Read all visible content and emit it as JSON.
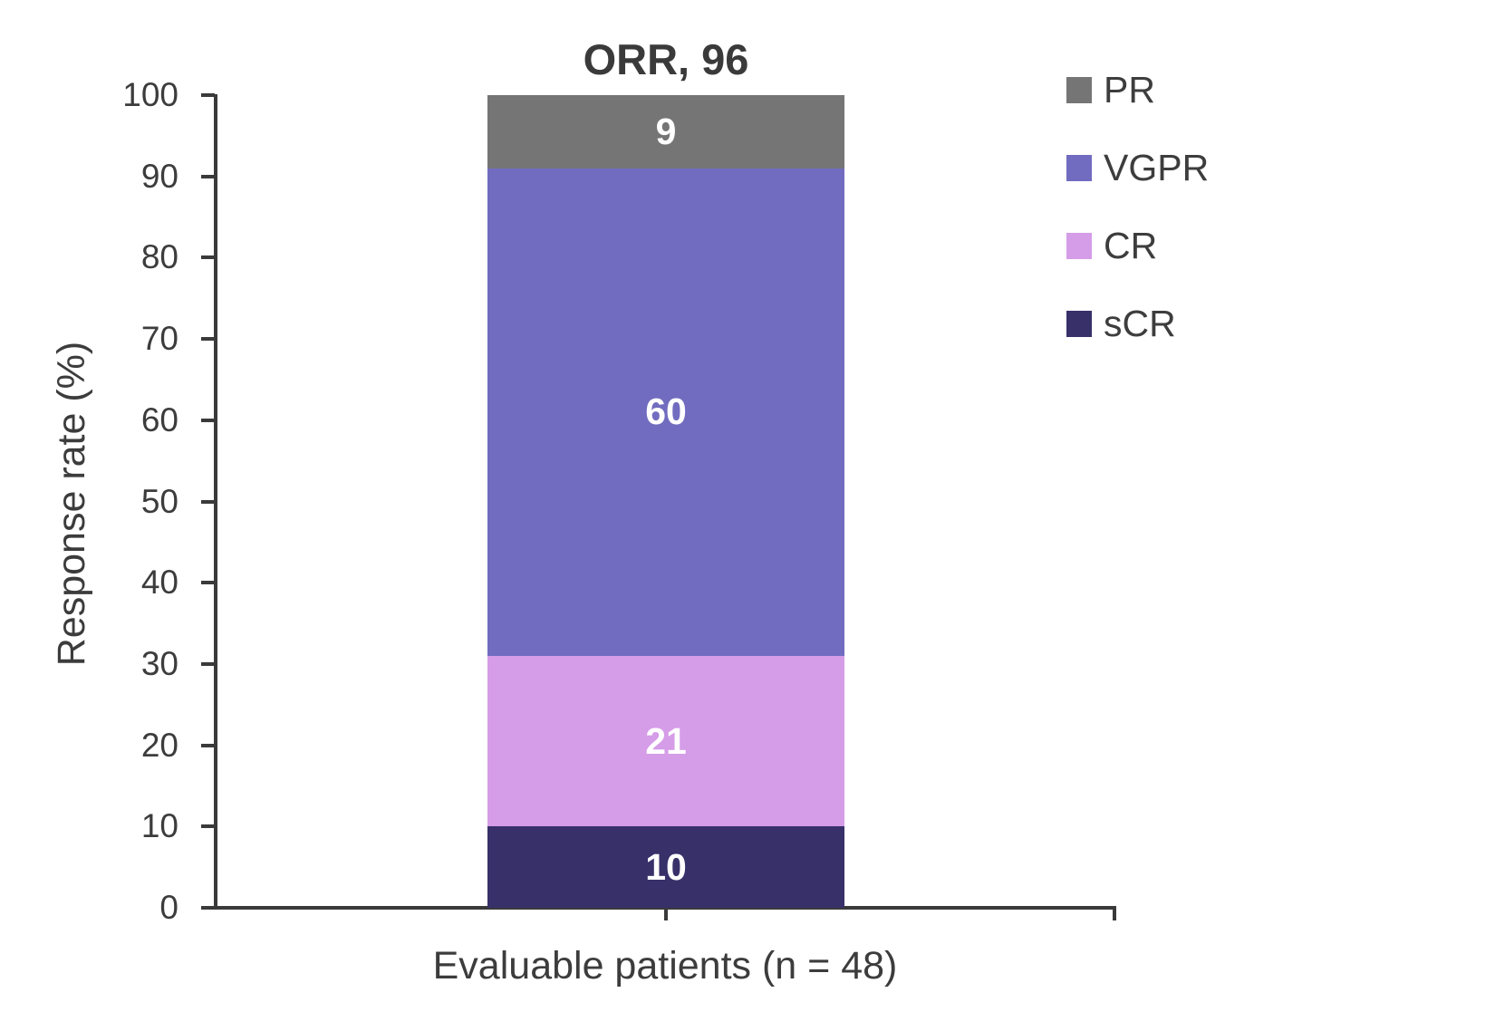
{
  "chart_data": {
    "type": "bar",
    "stacked": true,
    "title": "ORR, 96",
    "categories": [
      "Evaluable patients (n = 48)"
    ],
    "series": [
      {
        "name": "sCR",
        "values": [
          10
        ],
        "color": "#373069"
      },
      {
        "name": "CR",
        "values": [
          21
        ],
        "color": "#D59CE8"
      },
      {
        "name": "VGPR",
        "values": [
          60
        ],
        "color": "#716CBF"
      },
      {
        "name": "PR",
        "values": [
          9
        ],
        "color": "#757575"
      }
    ],
    "xlabel": "Evaluable patients (n = 48)",
    "ylabel": "Response rate (%)",
    "ylim": [
      0,
      100
    ],
    "yticks": [
      0,
      10,
      20,
      30,
      40,
      50,
      60,
      70,
      80,
      90,
      100
    ],
    "grid": false,
    "data_label_color": "#FFFFFF",
    "axis_color": "#3A3A3A",
    "text_color": "#3C3C3C",
    "legend": {
      "position": "right-top",
      "entries": [
        {
          "label": "PR",
          "color": "#757575"
        },
        {
          "label": "VGPR",
          "color": "#716CBF"
        },
        {
          "label": "CR",
          "color": "#D59CE8"
        },
        {
          "label": "sCR",
          "color": "#373069"
        }
      ]
    }
  }
}
